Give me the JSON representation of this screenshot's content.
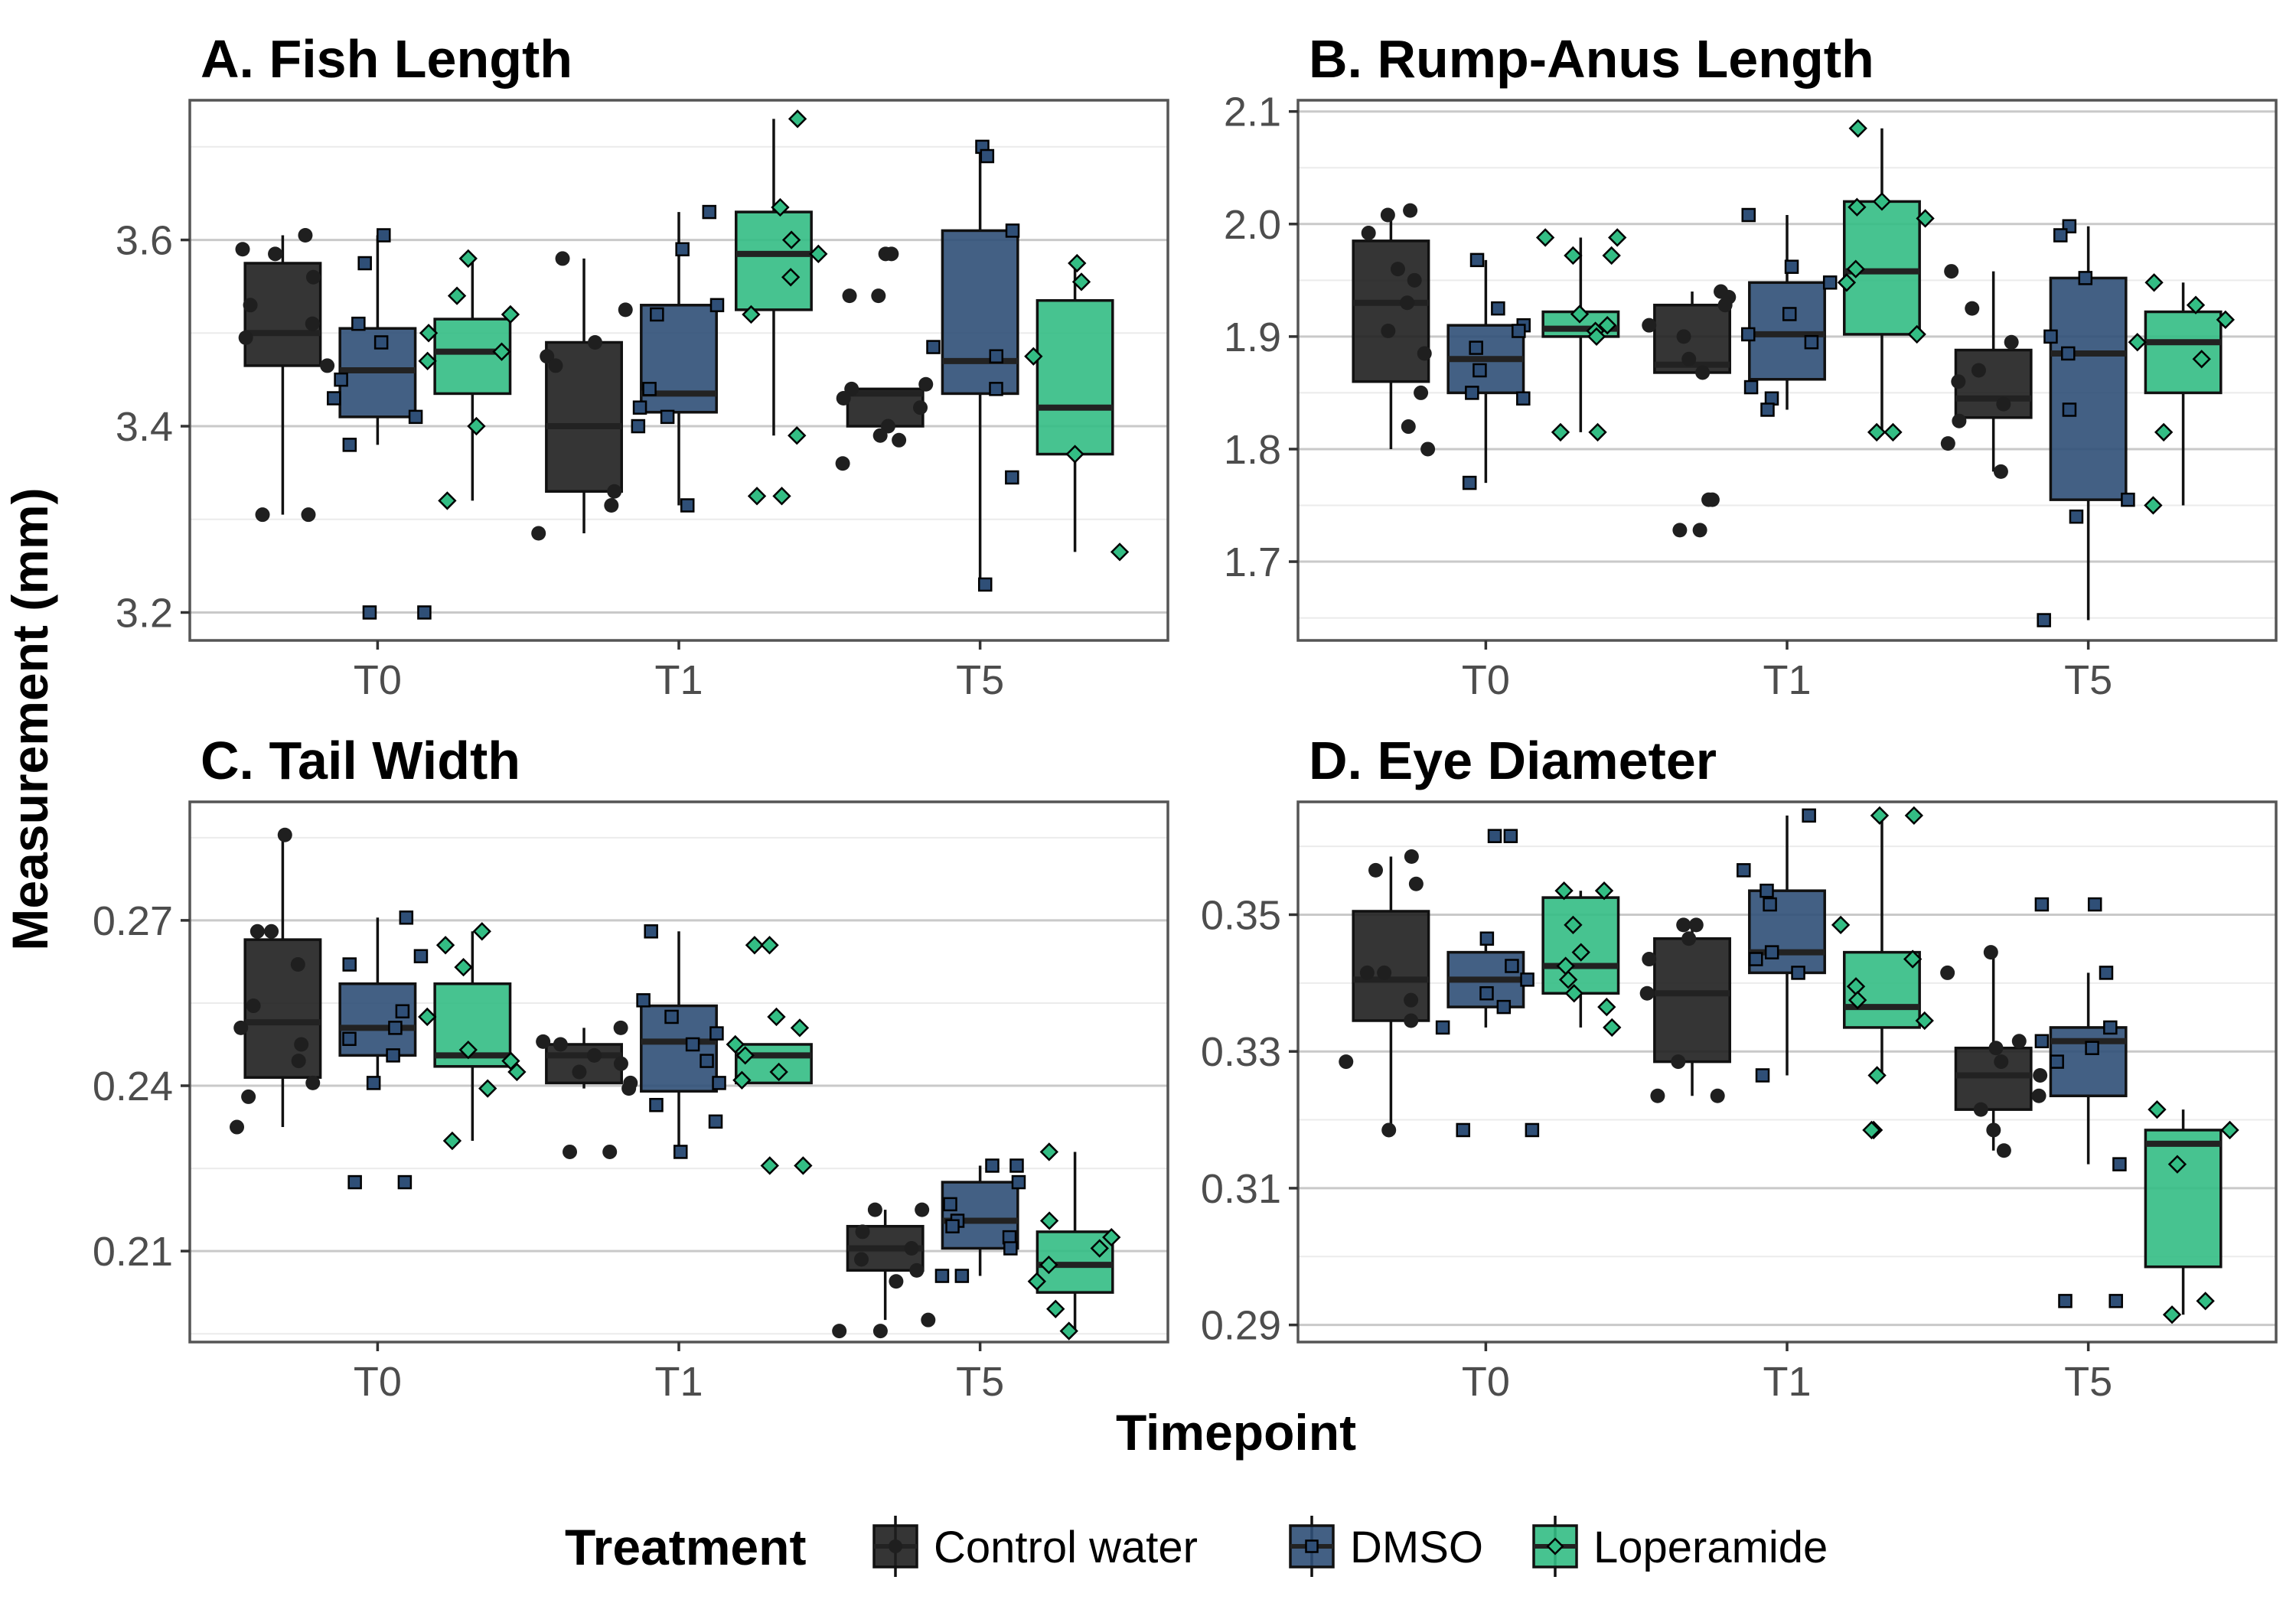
{
  "chart_data": {
    "type": "box",
    "xlabel": "Timepoint",
    "ylabel": "Measurement (mm)",
    "categories": [
      "T0",
      "T1",
      "T5"
    ],
    "legend": {
      "title": "Treatment",
      "position": "bottom",
      "items": [
        {
          "name": "Control water",
          "color": "#1f1f1f",
          "shape": "circle"
        },
        {
          "name": "DMSO",
          "color": "#2f4f77",
          "shape": "square"
        },
        {
          "name": "Loperamide",
          "color": "#33bd84",
          "shape": "diamond"
        }
      ]
    },
    "grid": true,
    "panels": [
      {
        "title": "A. Fish Length",
        "ylim": [
          3.17,
          3.75
        ],
        "yticks": [
          3.2,
          3.4,
          3.6
        ],
        "tick_labels": [
          "3.2",
          "3.4",
          "3.6"
        ],
        "boxes": [
          {
            "category": "T0",
            "series": "Control water",
            "lower": 3.305,
            "q1": 3.465,
            "median": 3.5,
            "q3": 3.575,
            "upper": 3.605,
            "points": [
              3.605,
              3.59,
              3.585,
              3.56,
              3.53,
              3.51,
              3.495,
              3.465,
              3.305,
              3.305
            ]
          },
          {
            "category": "T0",
            "series": "DMSO",
            "lower": 3.38,
            "q1": 3.41,
            "median": 3.46,
            "q3": 3.505,
            "upper": 3.605,
            "points": [
              3.605,
              3.575,
              3.51,
              3.49,
              3.45,
              3.43,
              3.41,
              3.38,
              3.2,
              3.2
            ]
          },
          {
            "category": "T0",
            "series": "Loperamide",
            "lower": 3.32,
            "q1": 3.435,
            "median": 3.48,
            "q3": 3.515,
            "upper": 3.58,
            "points": [
              3.58,
              3.54,
              3.52,
              3.5,
              3.48,
              3.47,
              3.4,
              3.32
            ]
          },
          {
            "category": "T1",
            "series": "Control water",
            "lower": 3.285,
            "q1": 3.33,
            "median": 3.4,
            "q3": 3.49,
            "upper": 3.58,
            "points": [
              3.58,
              3.525,
              3.49,
              3.475,
              3.465,
              3.33,
              3.315,
              3.285
            ]
          },
          {
            "category": "T1",
            "series": "DMSO",
            "lower": 3.315,
            "q1": 3.415,
            "median": 3.435,
            "q3": 3.53,
            "upper": 3.63,
            "points": [
              3.63,
              3.59,
              3.53,
              3.52,
              3.44,
              3.42,
              3.41,
              3.4,
              3.315
            ]
          },
          {
            "category": "T1",
            "series": "Loperamide",
            "lower": 3.39,
            "q1": 3.525,
            "median": 3.585,
            "q3": 3.63,
            "upper": 3.73,
            "points": [
              3.73,
              3.635,
              3.6,
              3.585,
              3.56,
              3.52,
              3.39,
              3.325,
              3.325
            ]
          },
          {
            "category": "T5",
            "series": "Control water",
            "lower": 3.4,
            "q1": 3.4,
            "median": 3.435,
            "q3": 3.44,
            "upper": 3.44,
            "points": [
              3.585,
              3.585,
              3.54,
              3.54,
              3.445,
              3.44,
              3.43,
              3.42,
              3.4,
              3.39,
              3.385,
              3.36
            ]
          },
          {
            "category": "T5",
            "series": "DMSO",
            "lower": 3.23,
            "q1": 3.435,
            "median": 3.47,
            "q3": 3.61,
            "upper": 3.7,
            "points": [
              3.7,
              3.69,
              3.61,
              3.485,
              3.475,
              3.44,
              3.345,
              3.23
            ]
          },
          {
            "category": "T5",
            "series": "Loperamide",
            "lower": 3.265,
            "q1": 3.37,
            "median": 3.42,
            "q3": 3.535,
            "upper": 3.575,
            "points": [
              3.575,
              3.555,
              3.475,
              3.37,
              3.265
            ]
          }
        ]
      },
      {
        "title": "B. Rump-Anus Length",
        "ylim": [
          1.63,
          2.11
        ],
        "yticks": [
          1.7,
          1.8,
          1.9,
          2.0,
          2.1
        ],
        "tick_labels": [
          "1.7",
          "1.8",
          "1.9",
          "2.0",
          "2.1"
        ],
        "boxes": [
          {
            "category": "T0",
            "series": "Control water",
            "lower": 1.8,
            "q1": 1.86,
            "median": 1.93,
            "q3": 1.985,
            "upper": 2.01,
            "points": [
              2.012,
              2.008,
              1.992,
              1.96,
              1.95,
              1.93,
              1.905,
              1.885,
              1.85,
              1.82,
              1.8
            ]
          },
          {
            "category": "T0",
            "series": "DMSO",
            "lower": 1.77,
            "q1": 1.85,
            "median": 1.88,
            "q3": 1.91,
            "upper": 1.968,
            "points": [
              1.968,
              1.925,
              1.91,
              1.905,
              1.89,
              1.87,
              1.85,
              1.845,
              1.77
            ]
          },
          {
            "category": "T0",
            "series": "Loperamide",
            "lower": 1.815,
            "q1": 1.9,
            "median": 1.907,
            "q3": 1.922,
            "upper": 1.988,
            "points": [
              1.988,
              1.988,
              1.972,
              1.972,
              1.92,
              1.91,
              1.905,
              1.9,
              1.815,
              1.815
            ]
          },
          {
            "category": "T1",
            "series": "Control water",
            "lower": 1.868,
            "q1": 1.868,
            "median": 1.875,
            "q3": 1.928,
            "upper": 1.94,
            "points": [
              1.94,
              1.935,
              1.928,
              1.91,
              1.9,
              1.88,
              1.868,
              1.755,
              1.755,
              1.728,
              1.728
            ]
          },
          {
            "category": "T1",
            "series": "DMSO",
            "lower": 1.835,
            "q1": 1.862,
            "median": 1.902,
            "q3": 1.948,
            "upper": 2.008,
            "points": [
              2.008,
              1.962,
              1.948,
              1.92,
              1.902,
              1.895,
              1.855,
              1.845,
              1.835
            ]
          },
          {
            "category": "T1",
            "series": "Loperamide",
            "lower": 1.815,
            "q1": 1.902,
            "median": 1.958,
            "q3": 2.02,
            "upper": 2.085,
            "points": [
              2.085,
              2.02,
              2.015,
              2.005,
              1.96,
              1.948,
              1.902,
              1.815,
              1.815
            ]
          },
          {
            "category": "T5",
            "series": "Control water",
            "lower": 1.78,
            "q1": 1.828,
            "median": 1.845,
            "q3": 1.888,
            "upper": 1.958,
            "points": [
              1.958,
              1.925,
              1.895,
              1.87,
              1.86,
              1.84,
              1.825,
              1.805,
              1.78
            ]
          },
          {
            "category": "T5",
            "series": "DMSO",
            "lower": 1.648,
            "q1": 1.755,
            "median": 1.885,
            "q3": 1.952,
            "upper": 1.998,
            "points": [
              1.998,
              1.99,
              1.952,
              1.9,
              1.885,
              1.835,
              1.755,
              1.74,
              1.648
            ]
          },
          {
            "category": "T5",
            "series": "Loperamide",
            "lower": 1.75,
            "q1": 1.85,
            "median": 1.895,
            "q3": 1.922,
            "upper": 1.948,
            "points": [
              1.948,
              1.928,
              1.915,
              1.895,
              1.88,
              1.815,
              1.75
            ]
          }
        ]
      },
      {
        "title": "C. Tail Width",
        "ylim": [
          0.1935,
          0.2915
        ],
        "yticks": [
          0.21,
          0.24,
          0.27
        ],
        "tick_labels": [
          "0.21",
          "0.24",
          "0.27"
        ],
        "boxes": [
          {
            "category": "T0",
            "series": "Control water",
            "lower": 0.2325,
            "q1": 0.2415,
            "median": 0.2515,
            "q3": 0.2665,
            "upper": 0.2855,
            "points": [
              0.2855,
              0.268,
              0.268,
              0.262,
              0.2545,
              0.2505,
              0.2475,
              0.2445,
              0.2405,
              0.238,
              0.2325
            ]
          },
          {
            "category": "T0",
            "series": "DMSO",
            "lower": 0.2405,
            "q1": 0.2455,
            "median": 0.2505,
            "q3": 0.2585,
            "upper": 0.2705,
            "points": [
              0.2705,
              0.2635,
              0.262,
              0.2535,
              0.2505,
              0.2485,
              0.2455,
              0.2405,
              0.2225,
              0.2225
            ]
          },
          {
            "category": "T0",
            "series": "Loperamide",
            "lower": 0.23,
            "q1": 0.2435,
            "median": 0.2455,
            "q3": 0.2585,
            "upper": 0.268,
            "points": [
              0.268,
              0.2655,
              0.2615,
              0.2525,
              0.2465,
              0.2445,
              0.2425,
              0.2395,
              0.23
            ]
          },
          {
            "category": "T1",
            "series": "Control water",
            "lower": 0.2395,
            "q1": 0.2405,
            "median": 0.2455,
            "q3": 0.2475,
            "upper": 0.2505,
            "points": [
              0.2505,
              0.248,
              0.2475,
              0.2455,
              0.244,
              0.2425,
              0.2405,
              0.2395,
              0.228,
              0.228
            ]
          },
          {
            "category": "T1",
            "series": "DMSO",
            "lower": 0.228,
            "q1": 0.239,
            "median": 0.248,
            "q3": 0.2545,
            "upper": 0.268,
            "points": [
              0.268,
              0.2555,
              0.2525,
              0.2495,
              0.2475,
              0.2445,
              0.2405,
              0.2365,
              0.2335,
              0.228
            ]
          },
          {
            "category": "T1",
            "series": "Loperamide",
            "lower": 0.2405,
            "q1": 0.2405,
            "median": 0.2455,
            "q3": 0.2475,
            "upper": 0.2475,
            "points": [
              0.2655,
              0.2655,
              0.2525,
              0.2505,
              0.2475,
              0.2455,
              0.2425,
              0.241,
              0.2255,
              0.2255
            ]
          },
          {
            "category": "T5",
            "series": "Control water",
            "lower": 0.1975,
            "q1": 0.2065,
            "median": 0.2105,
            "q3": 0.2145,
            "upper": 0.2175,
            "points": [
              0.2175,
              0.2175,
              0.2135,
              0.2105,
              0.2085,
              0.2065,
              0.2045,
              0.1975,
              0.1955,
              0.1955
            ]
          },
          {
            "category": "T5",
            "series": "DMSO",
            "lower": 0.2055,
            "q1": 0.2105,
            "median": 0.2155,
            "q3": 0.2225,
            "upper": 0.2255,
            "points": [
              0.2255,
              0.2255,
              0.2225,
              0.2185,
              0.2155,
              0.2145,
              0.2125,
              0.2105,
              0.2055,
              0.2055
            ]
          },
          {
            "category": "T5",
            "series": "Loperamide",
            "lower": 0.1955,
            "q1": 0.2025,
            "median": 0.2075,
            "q3": 0.2135,
            "upper": 0.228,
            "points": [
              0.228,
              0.2155,
              0.2125,
              0.2105,
              0.2075,
              0.2045,
              0.1995,
              0.1955
            ]
          }
        ]
      },
      {
        "title": "D. Eye Diameter",
        "ylim": [
          0.2875,
          0.3665
        ],
        "yticks": [
          0.29,
          0.31,
          0.33,
          0.35
        ],
        "tick_labels": [
          "0.29",
          "0.31",
          "0.33",
          "0.35"
        ],
        "boxes": [
          {
            "category": "T0",
            "series": "Control water",
            "lower": 0.3185,
            "q1": 0.3345,
            "median": 0.3405,
            "q3": 0.3505,
            "upper": 0.3585,
            "points": [
              0.3585,
              0.3565,
              0.3545,
              0.3415,
              0.3415,
              0.3375,
              0.3345,
              0.3285,
              0.3185
            ]
          },
          {
            "category": "T0",
            "series": "DMSO",
            "lower": 0.3335,
            "q1": 0.3365,
            "median": 0.3405,
            "q3": 0.3445,
            "upper": 0.3465,
            "points": [
              0.3615,
              0.3615,
              0.3465,
              0.3425,
              0.3405,
              0.3385,
              0.3365,
              0.3335,
              0.3185,
              0.3185
            ]
          },
          {
            "category": "T0",
            "series": "Loperamide",
            "lower": 0.3335,
            "q1": 0.3385,
            "median": 0.3425,
            "q3": 0.3525,
            "upper": 0.3535,
            "points": [
              0.3535,
              0.3535,
              0.3485,
              0.3445,
              0.3425,
              0.3405,
              0.3385,
              0.3365,
              0.3335
            ]
          },
          {
            "category": "T1",
            "series": "Control water",
            "lower": 0.3235,
            "q1": 0.3285,
            "median": 0.3385,
            "q3": 0.3465,
            "upper": 0.3485,
            "points": [
              0.3485,
              0.3485,
              0.3465,
              0.3435,
              0.3385,
              0.3285,
              0.3235,
              0.3235
            ]
          },
          {
            "category": "T1",
            "series": "DMSO",
            "lower": 0.3265,
            "q1": 0.3415,
            "median": 0.3445,
            "q3": 0.3535,
            "upper": 0.3645,
            "points": [
              0.3645,
              0.3565,
              0.3535,
              0.3515,
              0.3445,
              0.3435,
              0.3415,
              0.3265
            ]
          },
          {
            "category": "T1",
            "series": "Loperamide",
            "lower": 0.3265,
            "q1": 0.3335,
            "median": 0.3365,
            "q3": 0.3445,
            "upper": 0.3645,
            "points": [
              0.3645,
              0.3645,
              0.3485,
              0.3435,
              0.3395,
              0.3375,
              0.3345,
              0.3265,
              0.3185,
              0.3185
            ]
          },
          {
            "category": "T5",
            "series": "Control water",
            "lower": 0.3155,
            "q1": 0.3215,
            "median": 0.3265,
            "q3": 0.3305,
            "upper": 0.3445,
            "points": [
              0.3445,
              0.3415,
              0.3315,
              0.3305,
              0.3285,
              0.3265,
              0.3235,
              0.3215,
              0.3185,
              0.3155
            ]
          },
          {
            "category": "T5",
            "series": "DMSO",
            "lower": 0.3135,
            "q1": 0.3235,
            "median": 0.3315,
            "q3": 0.3335,
            "upper": 0.3415,
            "points": [
              0.3515,
              0.3515,
              0.3415,
              0.3335,
              0.3315,
              0.3305,
              0.3285,
              0.3135,
              0.2935,
              0.2935
            ]
          },
          {
            "category": "T5",
            "series": "Loperamide",
            "lower": 0.2915,
            "q1": 0.2985,
            "median": 0.3165,
            "q3": 0.3185,
            "upper": 0.3215,
            "points": [
              0.3215,
              0.3185,
              0.3135,
              0.2935,
              0.2915
            ]
          }
        ]
      }
    ]
  }
}
